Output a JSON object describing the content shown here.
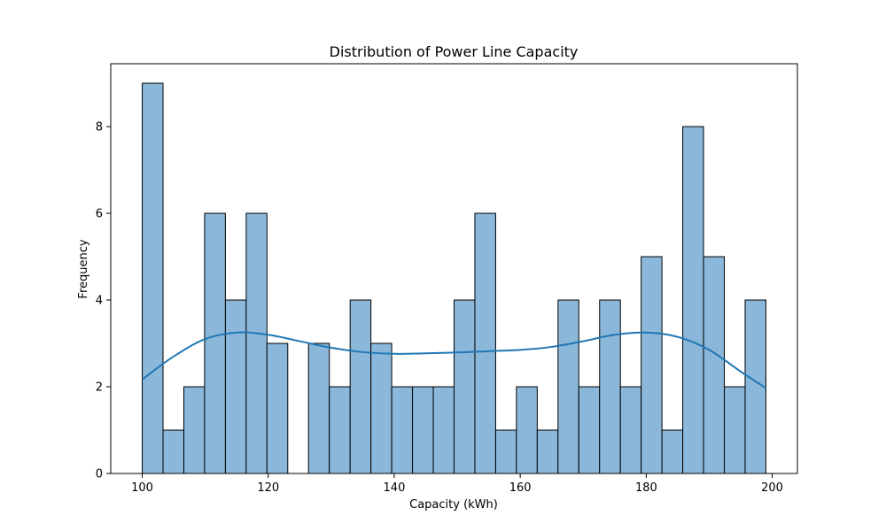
{
  "chart_data": {
    "type": "bar",
    "title": "Distribution of Power Line Capacity",
    "xlabel": "Capacity (kWh)",
    "ylabel": "Frequency",
    "xlim": [
      95,
      204
    ],
    "ylim": [
      0,
      9.45
    ],
    "x_ticks": [
      100,
      120,
      140,
      160,
      180,
      200
    ],
    "y_ticks": [
      0,
      2,
      4,
      6,
      8
    ],
    "bin_start": 100,
    "bin_width": 3.3,
    "counts": [
      9,
      1,
      2,
      6,
      4,
      6,
      3,
      0,
      3,
      2,
      4,
      3,
      2,
      2,
      2,
      4,
      6,
      1,
      2,
      1,
      4,
      2,
      4,
      2,
      5,
      1,
      8,
      5,
      2,
      4
    ],
    "kde": {
      "x": [
        100,
        105,
        110,
        115,
        120,
        125,
        130,
        135,
        140,
        145,
        150,
        155,
        160,
        165,
        170,
        175,
        180,
        185,
        190,
        195,
        199
      ],
      "y": [
        2.17,
        2.7,
        3.1,
        3.25,
        3.2,
        3.05,
        2.9,
        2.8,
        2.76,
        2.77,
        2.79,
        2.82,
        2.85,
        2.92,
        3.05,
        3.2,
        3.25,
        3.15,
        2.85,
        2.35,
        1.97
      ]
    },
    "bar_color": "#8bb8da",
    "bar_edge_color": "#000000",
    "kde_color": "#1f77b4",
    "grid": false
  }
}
